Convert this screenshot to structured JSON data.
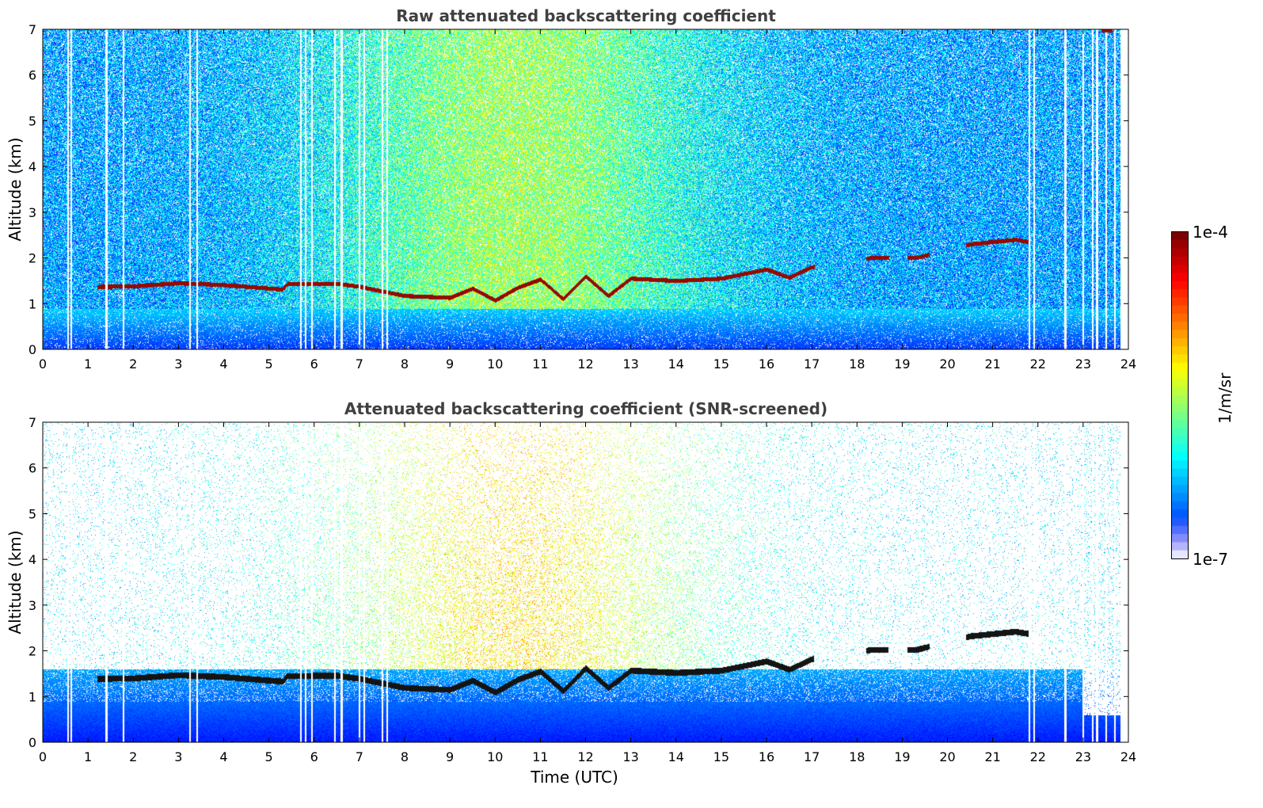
{
  "chart_data": [
    {
      "type": "heatmap",
      "title": "Raw attenuated backscattering coefficient",
      "xlabel": "",
      "ylabel": "Altitude (km)",
      "xlim": [
        0,
        24
      ],
      "ylim": [
        0,
        7
      ],
      "x_ticks": [
        "0",
        "1",
        "2",
        "3",
        "4",
        "5",
        "6",
        "7",
        "8",
        "9",
        "10",
        "11",
        "12",
        "13",
        "14",
        "15",
        "16",
        "17",
        "18",
        "19",
        "20",
        "21",
        "22",
        "23",
        "24"
      ],
      "y_ticks": [
        "0",
        "1",
        "2",
        "3",
        "4",
        "5",
        "6",
        "7"
      ],
      "layer_top_km": [
        [
          1.2,
          1.42
        ],
        [
          2.0,
          1.43
        ],
        [
          3.0,
          1.5
        ],
        [
          4.0,
          1.46
        ],
        [
          5.3,
          1.36
        ],
        [
          5.4,
          1.48
        ],
        [
          6.5,
          1.49
        ],
        [
          7.0,
          1.42
        ],
        [
          8.0,
          1.22
        ],
        [
          9.0,
          1.18
        ],
        [
          9.5,
          1.38
        ],
        [
          10.0,
          1.12
        ],
        [
          10.5,
          1.4
        ],
        [
          11.0,
          1.58
        ],
        [
          11.5,
          1.15
        ],
        [
          12.0,
          1.65
        ],
        [
          12.5,
          1.22
        ],
        [
          13.0,
          1.6
        ],
        [
          14.0,
          1.55
        ],
        [
          15.0,
          1.6
        ],
        [
          16.0,
          1.8
        ],
        [
          16.5,
          1.62
        ],
        [
          17.0,
          1.85
        ],
        [
          18.3,
          2.05
        ],
        [
          19.3,
          2.05
        ],
        [
          20.5,
          2.35
        ],
        [
          21.5,
          2.45
        ],
        [
          21.8,
          2.4
        ]
      ]
    },
    {
      "type": "heatmap",
      "title": "Attenuated backscattering coefficient (SNR-screened)",
      "xlabel": "Time (UTC)",
      "ylabel": "Altitude (km)",
      "xlim": [
        0,
        24
      ],
      "ylim": [
        0,
        7
      ],
      "x_ticks": [
        "0",
        "1",
        "2",
        "3",
        "4",
        "5",
        "6",
        "7",
        "8",
        "9",
        "10",
        "11",
        "12",
        "13",
        "14",
        "15",
        "16",
        "17",
        "18",
        "19",
        "20",
        "21",
        "22",
        "23",
        "24"
      ],
      "y_ticks": [
        "0",
        "1",
        "2",
        "3",
        "4",
        "5",
        "6",
        "7"
      ]
    }
  ],
  "colorbar": {
    "label": "1/m/sr",
    "max_label": "1e-4",
    "min_label": "1e-7",
    "scale": "log",
    "range": [
      1e-07,
      0.0001
    ],
    "colormap": "jet"
  }
}
